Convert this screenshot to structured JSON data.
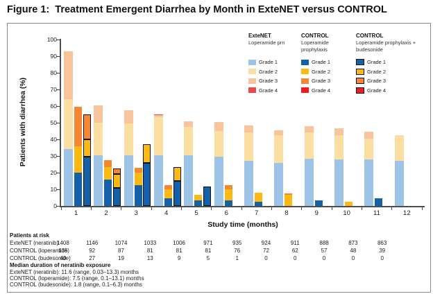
{
  "title": "Figure 1:  Treatment Emergent Diarrhea by Month in ExteNET versus CONTROL",
  "chart_data": {
    "type": "bar",
    "stacked": true,
    "xlabel": "Study time (months)",
    "ylabel": "Patients with diarrhea (%)",
    "ylim": [
      0,
      100
    ],
    "ytick_step": 10,
    "grid": false,
    "legend_position": "top-right-inside",
    "categories": [
      "1",
      "2",
      "3",
      "4",
      "5",
      "6",
      "7",
      "8",
      "9",
      "10",
      "11",
      "12"
    ],
    "grades": [
      "Grade 1",
      "Grade 2",
      "Grade 3",
      "Grade 4"
    ],
    "series": [
      {
        "key": "extenet",
        "name": "ExteNET",
        "subtitle": "Loperamide prn",
        "bordered": false,
        "colors": [
          "#9DC3E6",
          "#FBDFA2",
          "#F7C49C",
          "#E9494B"
        ],
        "values": [
          [
            34,
            30,
            29,
            0
          ],
          [
            30.5,
            19.5,
            10.5,
            0
          ],
          [
            30.5,
            19,
            8,
            0
          ],
          [
            30.5,
            23,
            1,
            0.5
          ],
          [
            30.5,
            17,
            3.5,
            0
          ],
          [
            29.5,
            15.5,
            5.5,
            0
          ],
          [
            27,
            17,
            4.5,
            0
          ],
          [
            26,
            16.5,
            3,
            0
          ],
          [
            28.5,
            15.5,
            4,
            0
          ],
          [
            28,
            14.5,
            4,
            0
          ],
          [
            28,
            12.5,
            4,
            0
          ],
          [
            27,
            15.5,
            0,
            0
          ]
        ]
      },
      {
        "key": "control-loperamide",
        "name": "CONTROL",
        "subtitle": "Loperamide prophylaxis",
        "bordered": false,
        "colors": [
          "#1460A9",
          "#FDB913",
          "#F58634",
          "#EC1C24"
        ],
        "values": [
          [
            20,
            16,
            23.5,
            0
          ],
          [
            16,
            7.5,
            4,
            0
          ],
          [
            12.5,
            7.5,
            3,
            0
          ],
          [
            4.5,
            5.5,
            2.5,
            0
          ],
          [
            3.5,
            3,
            0,
            0
          ],
          [
            3.5,
            6.5,
            2.5,
            0
          ],
          [
            2.5,
            5.5,
            0,
            0
          ],
          [
            0,
            6.5,
            1,
            0
          ],
          [
            3.5,
            0,
            0,
            0
          ],
          [
            0,
            2.5,
            0,
            0
          ],
          [
            4.5,
            0,
            0,
            0
          ],
          [
            0,
            0,
            0,
            0
          ]
        ]
      },
      {
        "key": "control-budesonide",
        "name": "CONTROL",
        "subtitle": "Loperamide prophylaxis + budesonide",
        "bordered": true,
        "colors": [
          "#1460A9",
          "#FDB913",
          "#F58634",
          "#EC1C24"
        ],
        "values": [
          [
            29.5,
            10.5,
            15,
            0
          ],
          [
            11,
            8,
            3.5,
            0
          ],
          [
            26,
            11,
            0,
            0
          ],
          [
            15,
            8.5,
            0,
            0
          ],
          [
            11.5,
            0,
            0,
            0
          ],
          [
            0,
            0,
            0,
            0
          ],
          [
            0,
            0,
            0,
            0
          ],
          [
            0,
            0,
            0,
            0
          ],
          [
            0,
            0,
            0,
            0
          ],
          [
            0,
            0,
            0,
            0
          ],
          [
            0,
            0,
            0,
            0
          ],
          [
            0,
            0,
            0,
            0
          ]
        ]
      }
    ]
  },
  "patients_at_risk": {
    "heading": "Patients at risk",
    "rows": [
      {
        "label": "ExteNET (neratinib)",
        "values": [
          "1408",
          "1146",
          "1074",
          "1033",
          "1006",
          "971",
          "935",
          "924",
          "911",
          "888",
          "873",
          "863"
        ]
      },
      {
        "label": "CONTROL (loperamide)",
        "values": [
          "135",
          "92",
          "87",
          "81",
          "81",
          "81",
          "76",
          "72",
          "62",
          "57",
          "48",
          "39"
        ]
      },
      {
        "label": "CONTROL (budesonide)",
        "values": [
          "40",
          "27",
          "19",
          "13",
          "9",
          "5",
          "1",
          "0",
          "0",
          "0",
          "0",
          "0"
        ]
      }
    ]
  },
  "median_duration": {
    "heading": "Median duration of neratinib exposure",
    "lines": [
      "ExteNET (neratinib): 11.6 (range, 0.03–13.3) months",
      "CONTROL (loperamide): 7.5 (range, 0.1–13.1) months",
      "CONTROL (budesonide): 1.8 (range, 0.1–6.3) months"
    ]
  },
  "colors": {
    "axis": "#4d4d4d",
    "frame_border": "#8a8a8a"
  }
}
